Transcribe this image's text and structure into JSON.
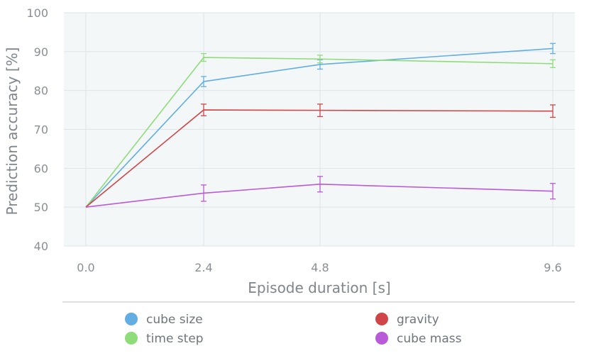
{
  "chart_data": {
    "type": "line",
    "xlabel": "Episode duration [s]",
    "ylabel": "Prediction accuracy [%]",
    "ylim": [
      40,
      100
    ],
    "x_ticks": [
      "0.0",
      "2.4",
      "4.8",
      "9.6"
    ],
    "y_ticks": [
      "40",
      "50",
      "60",
      "70",
      "80",
      "90",
      "100"
    ],
    "x": [
      0.0,
      2.4,
      4.8,
      9.6
    ],
    "grid": true,
    "legend_position": "bottom",
    "series": [
      {
        "name": "cube size",
        "color": "#62aee2",
        "values": [
          50,
          82.3,
          86.7,
          90.8
        ],
        "errors": [
          0,
          1.3,
          1.2,
          1.3
        ]
      },
      {
        "name": "time step",
        "color": "#8fdc7a",
        "values": [
          50,
          88.5,
          88.1,
          86.9
        ],
        "errors": [
          0,
          1.0,
          1.0,
          1.0
        ]
      },
      {
        "name": "gravity",
        "color": "#d04648",
        "values": [
          50,
          75.0,
          74.9,
          74.7
        ],
        "errors": [
          0,
          1.5,
          1.6,
          1.6
        ]
      },
      {
        "name": "cube mass",
        "color": "#b95ad9",
        "values": [
          50,
          53.6,
          55.9,
          54.1
        ],
        "errors": [
          0,
          2.1,
          2.0,
          2.0
        ]
      }
    ]
  }
}
